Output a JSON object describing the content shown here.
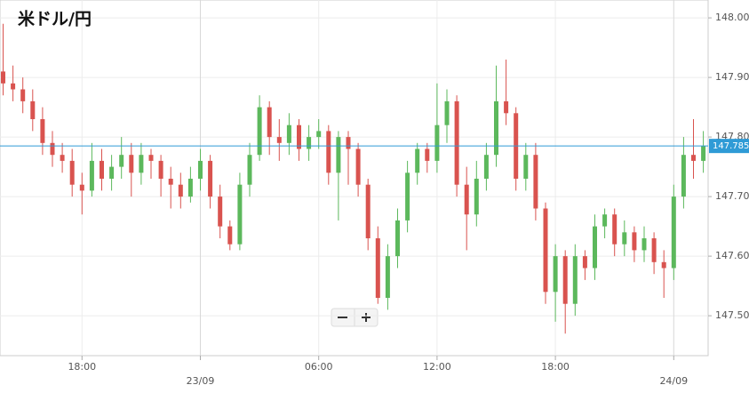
{
  "chart_data": {
    "type": "candlestick",
    "title": "米ドル/円",
    "categories": [
      null,
      null,
      null,
      null,
      null,
      null,
      null,
      null,
      "18:00",
      null,
      null,
      null,
      null,
      null,
      null,
      null,
      null,
      null,
      null,
      null,
      "23/09",
      null,
      null,
      null,
      null,
      null,
      null,
      null,
      null,
      null,
      null,
      null,
      "06:00",
      null,
      null,
      null,
      null,
      null,
      null,
      null,
      null,
      null,
      null,
      null,
      "12:00",
      null,
      null,
      null,
      null,
      null,
      null,
      null,
      null,
      null,
      null,
      null,
      "18:00",
      null,
      null,
      null,
      null,
      null,
      null,
      null,
      null,
      null,
      null,
      null,
      "24/09",
      null,
      null,
      null
    ],
    "open": [
      147.91,
      147.89,
      147.88,
      147.86,
      147.83,
      147.79,
      147.77,
      147.76,
      147.72,
      147.71,
      147.76,
      147.73,
      147.75,
      147.77,
      147.74,
      147.77,
      147.76,
      147.73,
      147.72,
      147.7,
      147.73,
      147.76,
      147.7,
      147.65,
      147.62,
      147.72,
      147.77,
      147.85,
      147.8,
      147.79,
      147.82,
      147.78,
      147.8,
      147.81,
      147.74,
      147.8,
      147.78,
      147.72,
      147.63,
      147.53,
      147.6,
      147.66,
      147.74,
      147.78,
      147.76,
      147.82,
      147.86,
      147.72,
      147.67,
      147.73,
      147.77,
      147.86,
      147.84,
      147.73,
      147.77,
      147.68,
      147.54,
      147.6,
      147.52,
      147.6,
      147.58,
      147.65,
      147.67,
      147.62,
      147.64,
      147.61,
      147.63,
      147.59,
      147.58,
      147.7,
      147.77,
      147.76
    ],
    "high": [
      147.99,
      147.92,
      147.9,
      147.88,
      147.85,
      147.81,
      147.79,
      147.78,
      147.74,
      147.79,
      147.78,
      147.77,
      147.8,
      147.79,
      147.79,
      147.78,
      147.77,
      147.75,
      147.74,
      147.75,
      147.78,
      147.77,
      147.72,
      147.66,
      147.74,
      147.79,
      147.87,
      147.86,
      147.83,
      147.84,
      147.83,
      147.82,
      147.83,
      147.82,
      147.81,
      147.81,
      147.79,
      147.73,
      147.65,
      147.62,
      147.68,
      147.76,
      147.79,
      147.79,
      147.89,
      147.88,
      147.87,
      147.75,
      147.76,
      147.79,
      147.92,
      147.93,
      147.85,
      147.79,
      147.79,
      147.69,
      147.62,
      147.61,
      147.62,
      147.61,
      147.67,
      147.68,
      147.68,
      147.66,
      147.65,
      147.65,
      147.64,
      147.61,
      147.72,
      147.8,
      147.83,
      147.81
    ],
    "low": [
      147.87,
      147.86,
      147.84,
      147.81,
      147.77,
      147.75,
      147.74,
      147.7,
      147.67,
      147.7,
      147.71,
      147.71,
      147.73,
      147.7,
      147.72,
      147.73,
      147.7,
      147.68,
      147.68,
      147.69,
      147.71,
      147.68,
      147.63,
      147.61,
      147.61,
      147.7,
      147.76,
      147.77,
      147.76,
      147.77,
      147.76,
      147.76,
      147.78,
      147.72,
      147.66,
      147.72,
      147.7,
      147.61,
      147.52,
      147.51,
      147.58,
      147.64,
      147.72,
      147.74,
      147.74,
      147.79,
      147.7,
      147.61,
      147.65,
      147.71,
      147.75,
      147.82,
      147.71,
      147.71,
      147.66,
      147.52,
      147.49,
      147.47,
      147.5,
      147.56,
      147.56,
      147.63,
      147.6,
      147.6,
      147.59,
      147.59,
      147.57,
      147.53,
      147.56,
      147.68,
      147.73,
      147.74
    ],
    "close": [
      147.89,
      147.88,
      147.86,
      147.83,
      147.79,
      147.77,
      147.76,
      147.72,
      147.71,
      147.76,
      147.73,
      147.75,
      147.77,
      147.74,
      147.77,
      147.76,
      147.73,
      147.72,
      147.7,
      147.73,
      147.76,
      147.7,
      147.65,
      147.62,
      147.72,
      147.77,
      147.85,
      147.8,
      147.79,
      147.82,
      147.78,
      147.8,
      147.81,
      147.74,
      147.8,
      147.78,
      147.72,
      147.63,
      147.53,
      147.6,
      147.66,
      147.74,
      147.78,
      147.76,
      147.82,
      147.86,
      147.72,
      147.67,
      147.73,
      147.77,
      147.86,
      147.84,
      147.73,
      147.77,
      147.68,
      147.54,
      147.6,
      147.52,
      147.6,
      147.58,
      147.65,
      147.67,
      147.62,
      147.64,
      147.61,
      147.63,
      147.59,
      147.58,
      147.7,
      147.77,
      147.76,
      147.785
    ],
    "up_color": "#5cb85c",
    "down_color": "#d9534f",
    "ylim": [
      147.433,
      148.03
    ],
    "yticks": [
      {
        "value": 147.5,
        "label": "147.500"
      },
      {
        "value": 147.6,
        "label": "147.600"
      },
      {
        "value": 147.7,
        "label": "147.700"
      },
      {
        "value": 147.8,
        "label": "147.800"
      },
      {
        "value": 147.9,
        "label": "147.900"
      },
      {
        "value": 148,
        "label": "148.000"
      }
    ],
    "current_price": 147.785,
    "current_price_color": "#2f9bd6",
    "grid": true
  }
}
